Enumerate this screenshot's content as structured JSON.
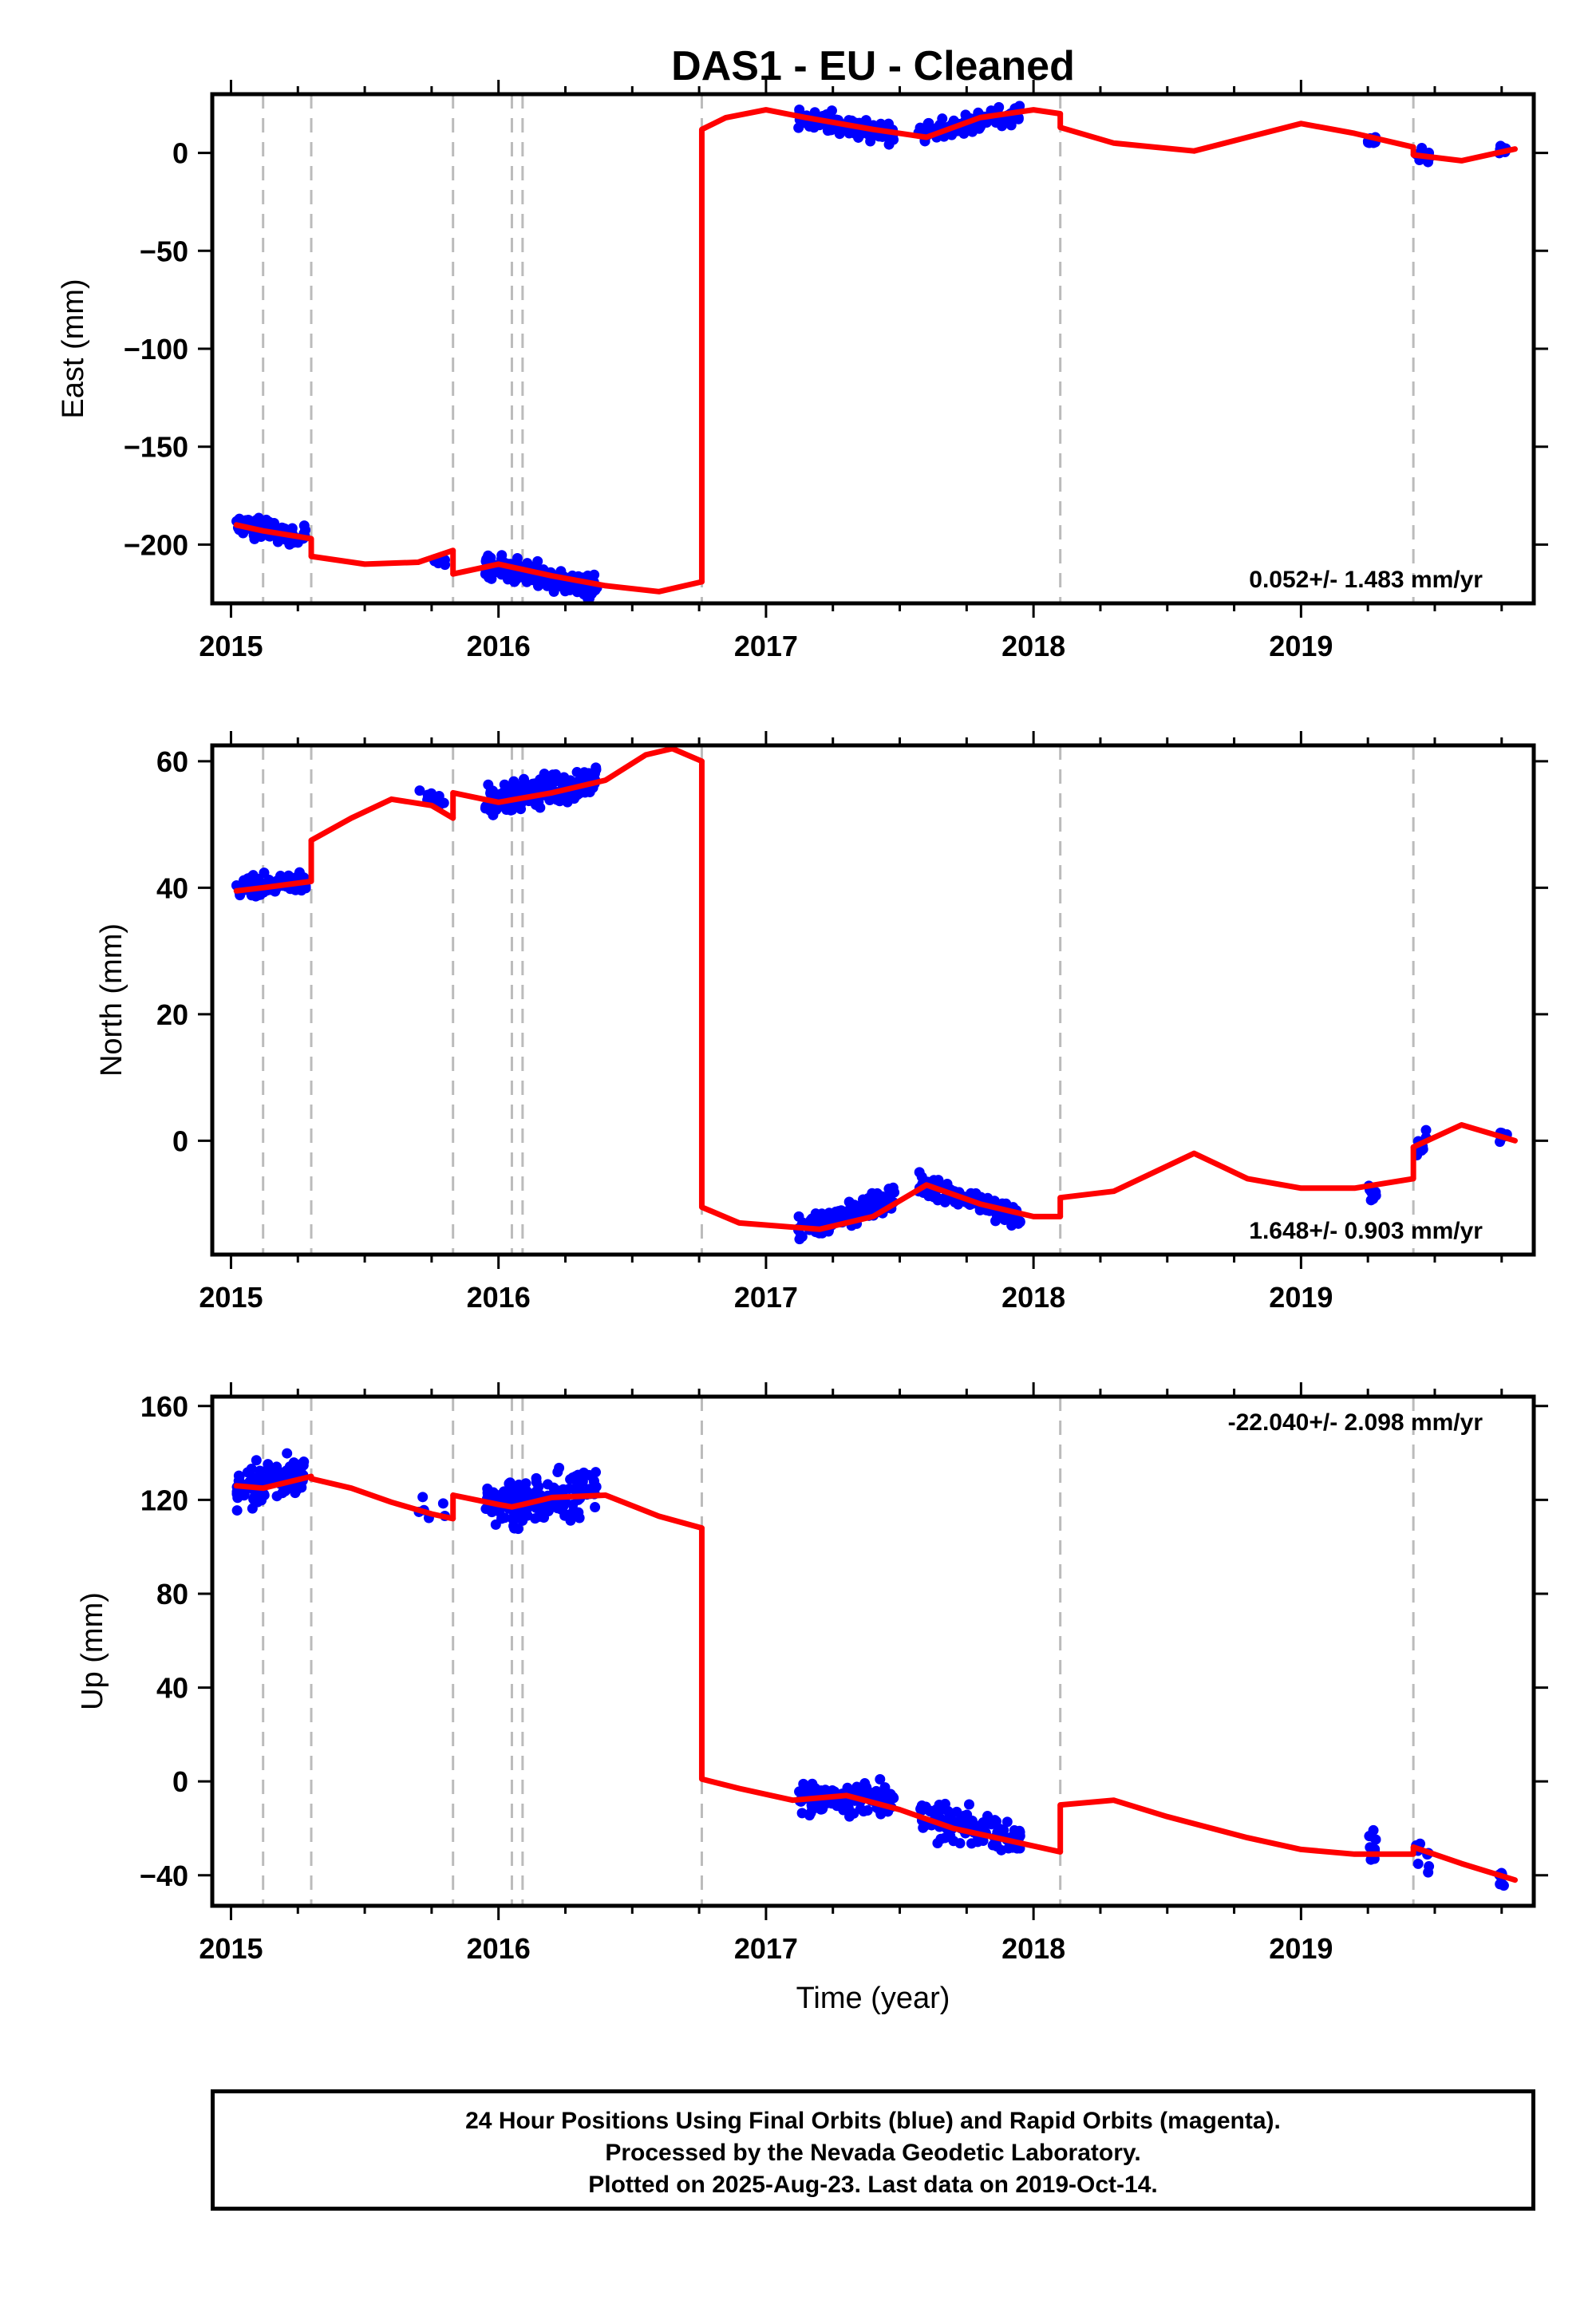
{
  "title": "DAS1  - EU - Cleaned",
  "xlabel": "Time (year)",
  "footer": {
    "line1": "24 Hour Positions Using Final Orbits (blue) and Rapid Orbits (magenta).",
    "line2": "Processed by the Nevada Geodetic Laboratory.",
    "line3": "Plotted on 2025-Aug-23. Last data on 2019-Oct-14."
  },
  "colors": {
    "points": "#0000ff",
    "model": "#ff0000",
    "events": "#bbbbbb",
    "frame": "#000000"
  },
  "chart_data": [
    {
      "type": "scatter",
      "ylabel": "East (mm)",
      "xlim": [
        2014.93,
        2019.87
      ],
      "ylim": [
        -230,
        30
      ],
      "xticks": [
        2015,
        2016,
        2017,
        2018,
        2019
      ],
      "yticks": [
        0,
        -50,
        -100,
        -150,
        -200
      ],
      "rate_text": "0.052+/- 1.483 mm/yr",
      "rate_position": "bottom-right",
      "event_lines": [
        2015.12,
        2015.3,
        2015.83,
        2016.05,
        2016.09,
        2016.76,
        2018.1,
        2019.42
      ],
      "model_segments": [
        [
          [
            2015.02,
            -190
          ],
          [
            2015.12,
            -193
          ],
          [
            2015.3,
            -197
          ]
        ],
        [
          [
            2015.3,
            -206
          ],
          [
            2015.5,
            -210
          ],
          [
            2015.7,
            -209
          ],
          [
            2015.83,
            -203
          ]
        ],
        [
          [
            2015.83,
            -215
          ],
          [
            2016.0,
            -210
          ],
          [
            2016.2,
            -216
          ],
          [
            2016.4,
            -221
          ],
          [
            2016.6,
            -224
          ],
          [
            2016.76,
            -219
          ]
        ],
        [
          [
            2016.76,
            12
          ],
          [
            2016.85,
            18
          ],
          [
            2017.0,
            22
          ],
          [
            2017.15,
            18
          ],
          [
            2017.4,
            12
          ],
          [
            2017.6,
            8
          ],
          [
            2017.8,
            18
          ],
          [
            2018.0,
            22
          ],
          [
            2018.1,
            20
          ]
        ],
        [
          [
            2018.1,
            13
          ],
          [
            2018.3,
            5
          ],
          [
            2018.6,
            1
          ],
          [
            2018.8,
            8
          ],
          [
            2019.0,
            15
          ],
          [
            2019.2,
            10
          ],
          [
            2019.42,
            3
          ]
        ],
        [
          [
            2019.42,
            -1
          ],
          [
            2019.6,
            -4
          ],
          [
            2019.8,
            2
          ]
        ]
      ],
      "point_clusters": [
        {
          "x": [
            2015.02,
            2015.28
          ],
          "center": [
            -190,
            -196
          ],
          "spread": 4,
          "n": 110
        },
        {
          "x": [
            2015.75,
            2015.8
          ],
          "center": [
            -208,
            -209
          ],
          "spread": 2,
          "n": 8
        },
        {
          "x": [
            2015.95,
            2016.37
          ],
          "center": [
            -210,
            -222
          ],
          "spread": 5,
          "n": 170
        },
        {
          "x": [
            2017.12,
            2017.48
          ],
          "center": [
            18,
            10
          ],
          "spread": 4,
          "n": 120
        },
        {
          "x": [
            2017.57,
            2017.95
          ],
          "center": [
            9,
            20
          ],
          "spread": 4,
          "n": 120
        },
        {
          "x": [
            2019.25,
            2019.28
          ],
          "center": [
            6,
            6
          ],
          "spread": 3,
          "n": 12
        },
        {
          "x": [
            2019.43,
            2019.48
          ],
          "center": [
            -2,
            -2
          ],
          "spread": 3,
          "n": 10
        },
        {
          "x": [
            2019.74,
            2019.77
          ],
          "center": [
            1,
            1
          ],
          "spread": 2,
          "n": 8
        }
      ]
    },
    {
      "type": "scatter",
      "ylabel": "North (mm)",
      "xlim": [
        2014.93,
        2019.87
      ],
      "ylim": [
        -18,
        62.5
      ],
      "xticks": [
        2015,
        2016,
        2017,
        2018,
        2019
      ],
      "yticks": [
        60,
        40,
        20,
        0
      ],
      "rate_text": "1.648+/- 0.903 mm/yr",
      "rate_position": "bottom-right",
      "event_lines": [
        2015.12,
        2015.3,
        2015.83,
        2016.05,
        2016.09,
        2016.76,
        2018.1,
        2019.42
      ],
      "model_segments": [
        [
          [
            2015.02,
            39.5
          ],
          [
            2015.12,
            40
          ],
          [
            2015.3,
            41
          ]
        ],
        [
          [
            2015.3,
            47.5
          ],
          [
            2015.45,
            51
          ],
          [
            2015.6,
            54
          ],
          [
            2015.75,
            53
          ],
          [
            2015.83,
            51
          ]
        ],
        [
          [
            2015.83,
            55
          ],
          [
            2016.0,
            53.5
          ],
          [
            2016.2,
            55
          ],
          [
            2016.4,
            57
          ],
          [
            2016.55,
            61
          ],
          [
            2016.65,
            62
          ],
          [
            2016.76,
            60
          ]
        ],
        [
          [
            2016.76,
            -10.5
          ],
          [
            2016.9,
            -13
          ],
          [
            2017.2,
            -14
          ],
          [
            2017.4,
            -12
          ],
          [
            2017.6,
            -7
          ],
          [
            2017.8,
            -10
          ],
          [
            2018.0,
            -12
          ],
          [
            2018.1,
            -12
          ]
        ],
        [
          [
            2018.1,
            -9
          ],
          [
            2018.3,
            -8
          ],
          [
            2018.6,
            -2
          ],
          [
            2018.8,
            -6
          ],
          [
            2019.0,
            -7.5
          ],
          [
            2019.2,
            -7.5
          ],
          [
            2019.42,
            -6
          ]
        ],
        [
          [
            2019.42,
            -1
          ],
          [
            2019.6,
            2.5
          ],
          [
            2019.8,
            0
          ]
        ]
      ],
      "point_clusters": [
        {
          "x": [
            2015.02,
            2015.28
          ],
          "center": [
            40,
            41
          ],
          "spread": 1.3,
          "n": 110
        },
        {
          "x": [
            2015.7,
            2015.82
          ],
          "center": [
            55,
            53
          ],
          "spread": 1,
          "n": 10
        },
        {
          "x": [
            2015.95,
            2016.37
          ],
          "center": [
            53.5,
            57
          ],
          "spread": 1.8,
          "n": 170
        },
        {
          "x": [
            2017.12,
            2017.48
          ],
          "center": [
            -14,
            -9
          ],
          "spread": 1.8,
          "n": 120
        },
        {
          "x": [
            2017.57,
            2017.95
          ],
          "center": [
            -7,
            -12
          ],
          "spread": 1.5,
          "n": 120
        },
        {
          "x": [
            2019.25,
            2019.28
          ],
          "center": [
            -7,
            -9
          ],
          "spread": 1.5,
          "n": 12
        },
        {
          "x": [
            2019.43,
            2019.48
          ],
          "center": [
            -1,
            1
          ],
          "spread": 1.5,
          "n": 10
        },
        {
          "x": [
            2019.74,
            2019.77
          ],
          "center": [
            1,
            1
          ],
          "spread": 1,
          "n": 8
        }
      ]
    },
    {
      "type": "scatter",
      "ylabel": "Up (mm)",
      "xlim": [
        2014.93,
        2019.87
      ],
      "ylim": [
        -53,
        164
      ],
      "xticks": [
        2015,
        2016,
        2017,
        2018,
        2019
      ],
      "yticks": [
        160,
        120,
        80,
        40,
        0,
        -40
      ],
      "rate_text": "-22.040+/- 2.098 mm/yr",
      "rate_position": "top-right",
      "event_lines": [
        2015.12,
        2015.3,
        2015.83,
        2016.05,
        2016.09,
        2016.76,
        2018.1,
        2019.42
      ],
      "model_segments": [
        [
          [
            2015.02,
            126
          ],
          [
            2015.12,
            125
          ],
          [
            2015.3,
            130
          ]
        ],
        [
          [
            2015.3,
            129
          ],
          [
            2015.45,
            125
          ],
          [
            2015.6,
            119
          ],
          [
            2015.75,
            114
          ],
          [
            2015.83,
            112
          ]
        ],
        [
          [
            2015.83,
            122
          ],
          [
            2016.0,
            118
          ],
          [
            2016.05,
            117
          ],
          [
            2016.09,
            118
          ],
          [
            2016.2,
            121
          ],
          [
            2016.4,
            122
          ],
          [
            2016.6,
            113
          ],
          [
            2016.76,
            108
          ]
        ],
        [
          [
            2016.76,
            1
          ],
          [
            2016.9,
            -3
          ],
          [
            2017.1,
            -8
          ],
          [
            2017.3,
            -6
          ],
          [
            2017.5,
            -12
          ],
          [
            2017.7,
            -20
          ],
          [
            2017.9,
            -25
          ],
          [
            2018.1,
            -30
          ]
        ],
        [
          [
            2018.1,
            -10
          ],
          [
            2018.3,
            -8
          ],
          [
            2018.5,
            -15
          ],
          [
            2018.8,
            -24
          ],
          [
            2019.0,
            -29
          ],
          [
            2019.2,
            -31
          ],
          [
            2019.42,
            -31
          ]
        ],
        [
          [
            2019.42,
            -28
          ],
          [
            2019.6,
            -35
          ],
          [
            2019.8,
            -42
          ]
        ]
      ],
      "point_clusters": [
        {
          "x": [
            2015.02,
            2015.28
          ],
          "center": [
            124,
            132
          ],
          "spread": 6,
          "n": 110
        },
        {
          "x": [
            2015.7,
            2015.8
          ],
          "center": [
            112,
            112
          ],
          "spread": 6,
          "n": 6
        },
        {
          "x": [
            2015.95,
            2016.37
          ],
          "center": [
            118,
            124
          ],
          "spread": 8,
          "n": 170
        },
        {
          "x": [
            2017.12,
            2017.48
          ],
          "center": [
            -8,
            -8
          ],
          "spread": 6,
          "n": 120
        },
        {
          "x": [
            2017.57,
            2017.95
          ],
          "center": [
            -15,
            -25
          ],
          "spread": 6,
          "n": 120
        },
        {
          "x": [
            2019.25,
            2019.28
          ],
          "center": [
            -28,
            -30
          ],
          "spread": 5,
          "n": 12
        },
        {
          "x": [
            2019.43,
            2019.48
          ],
          "center": [
            -28,
            -30
          ],
          "spread": 6,
          "n": 10
        },
        {
          "x": [
            2019.74,
            2019.77
          ],
          "center": [
            -42,
            -44
          ],
          "spread": 4,
          "n": 8
        }
      ]
    }
  ]
}
